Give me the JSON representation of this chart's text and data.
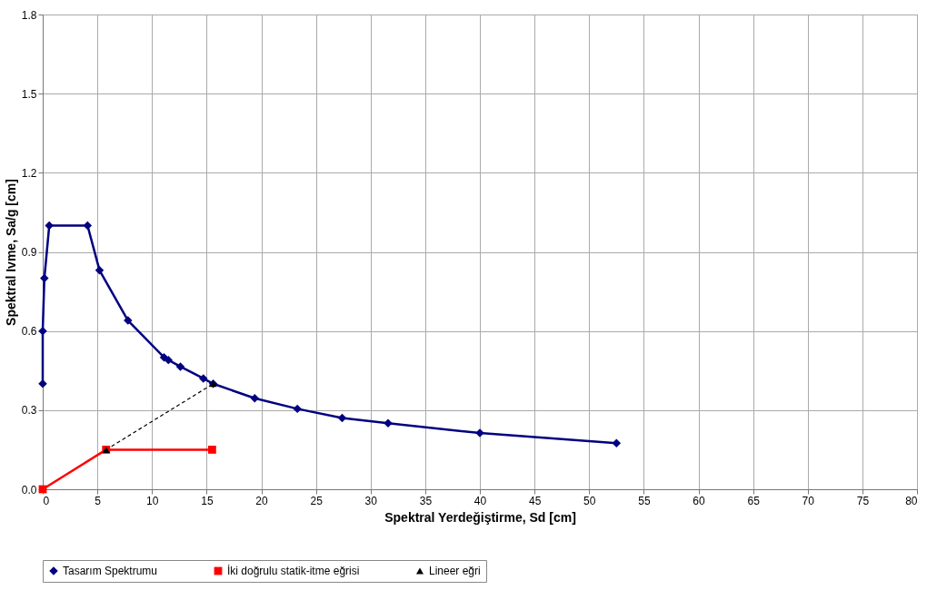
{
  "chart_data": {
    "type": "line",
    "xlabel": "Spektral Yerdeğiştirme, Sd [cm]",
    "ylabel": "Spektral Ivme, Sa/g [cm]",
    "series": [
      {
        "name": "Tasarım Spektrumu",
        "color": "#000080",
        "marker": "diamond",
        "line_style": "solid",
        "x": [
          0,
          0,
          0.15,
          0.6,
          4.1,
          5.2,
          7.8,
          11.1,
          11.5,
          12.6,
          14.7,
          15.6,
          19.4,
          23.3,
          27.4,
          31.6,
          40.0,
          52.5
        ],
        "values": [
          0.4,
          0.6,
          0.8,
          1.0,
          1.0,
          0.83,
          0.64,
          0.5,
          0.49,
          0.465,
          0.42,
          0.4,
          0.345,
          0.305,
          0.27,
          0.25,
          0.213,
          0.175
        ]
      },
      {
        "name": "İki doğrulu statik-itme eğrisi",
        "color": "#ff0000",
        "marker": "square",
        "line_style": "solid",
        "x": [
          0,
          5.8,
          15.5
        ],
        "values": [
          0,
          0.15,
          0.15
        ]
      },
      {
        "name": "Lineer eğri",
        "color": "#000000",
        "marker": "triangle",
        "line_style": "dashed",
        "x": [
          5.8,
          15.6
        ],
        "values": [
          0.15,
          0.4
        ]
      }
    ],
    "xlim": [
      0,
      80
    ],
    "xticks": [
      0,
      5,
      10,
      15,
      20,
      25,
      30,
      35,
      40,
      45,
      50,
      55,
      60,
      65,
      70,
      75,
      80
    ],
    "ylim": [
      0,
      1.8
    ],
    "yticks": [
      {
        "value": 0,
        "label": "0.0"
      },
      0.3,
      0.6,
      0.9,
      1.2,
      1.5,
      1.8
    ],
    "grid": true,
    "legend": "bottom"
  }
}
